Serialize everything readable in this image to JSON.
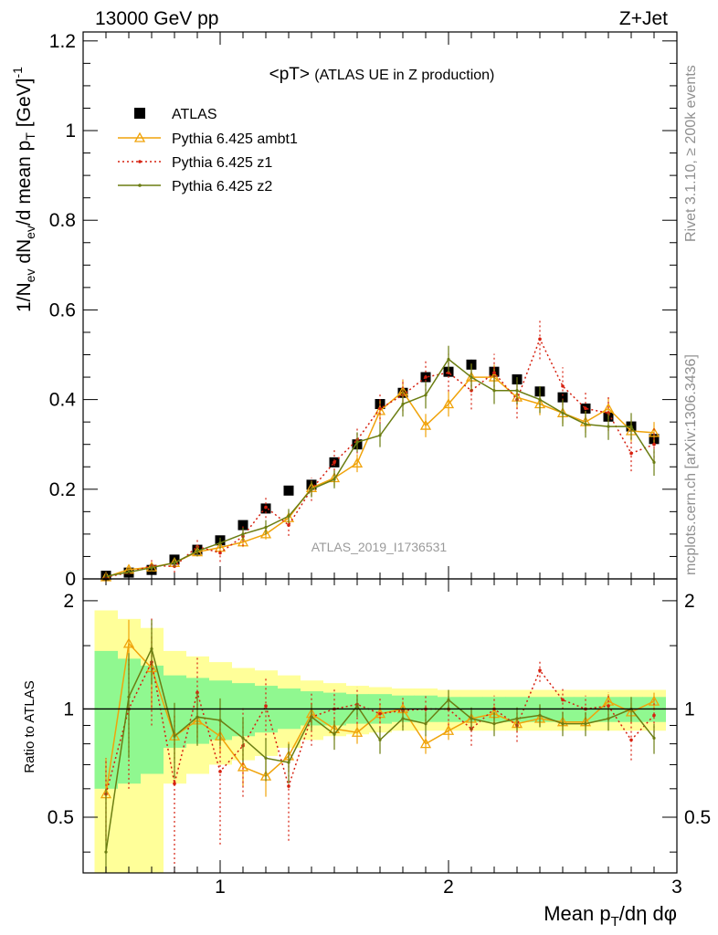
{
  "header": {
    "left": "13000 GeV pp",
    "right": "Z+Jet"
  },
  "side": {
    "rivet": "Rivet 3.1.10, ≥ 200k events",
    "mcplots": "mcplots.cern.ch [arXiv:1306.3436]"
  },
  "watermark": "ATLAS_2019_I1736531",
  "colors": {
    "data": "#000000",
    "ambt1": "#f0a30a",
    "z1": "#d6200f",
    "z2": "#6b7d12",
    "band_inner": "#90f890",
    "band_outer": "#ffff99"
  },
  "chart_data": [
    {
      "type": "line",
      "panel": "main",
      "title_main": "<pT>",
      "title_suffix": "(ATLAS UE in Z production)",
      "ylabel": "1/N_ev dN_ev/d mean p_T [GeV]^-1",
      "xlim": [
        0.4,
        3.0
      ],
      "ylim": [
        0,
        1.22
      ],
      "yticks": [
        0,
        0.2,
        0.4,
        0.6,
        0.8,
        1,
        1.2
      ],
      "ytick_labels": [
        "0",
        "0.2",
        "0.4",
        "0.6",
        "0.8",
        "1",
        "1.2"
      ],
      "x": [
        0.5,
        0.6,
        0.7,
        0.8,
        0.9,
        1.0,
        1.1,
        1.2,
        1.3,
        1.4,
        1.5,
        1.6,
        1.7,
        1.8,
        1.9,
        2.0,
        2.1,
        2.2,
        2.3,
        2.4,
        2.5,
        2.6,
        2.7,
        2.8,
        2.9
      ],
      "legend": [
        "ATLAS",
        "Pythia 6.425 ambt1",
        "Pythia 6.425 z1",
        "Pythia 6.425 z2"
      ],
      "series": [
        {
          "name": "ATLAS",
          "key": "data",
          "style": "marker",
          "values": [
            0.007,
            0.014,
            0.02,
            0.043,
            0.065,
            0.086,
            0.12,
            0.157,
            0.197,
            0.21,
            0.26,
            0.3,
            0.39,
            0.415,
            0.45,
            0.462,
            0.478,
            0.462,
            0.445,
            0.418,
            0.405,
            0.38,
            0.362,
            0.34,
            0.312
          ],
          "errors": [
            0.002,
            0.003,
            0.004,
            0.005,
            0.005,
            0.006,
            0.007,
            0.008,
            0.008,
            0.009,
            0.01,
            0.01,
            0.011,
            0.011,
            0.011,
            0.011,
            0.011,
            0.011,
            0.011,
            0.011,
            0.011,
            0.011,
            0.011,
            0.012,
            0.012
          ]
        },
        {
          "name": "Pythia 6.425 ambt1",
          "key": "ambt1",
          "style": "solid",
          "values": [
            0.004,
            0.021,
            0.026,
            0.036,
            0.06,
            0.07,
            0.082,
            0.1,
            0.136,
            0.203,
            0.225,
            0.258,
            0.375,
            0.418,
            0.342,
            0.39,
            0.45,
            0.45,
            0.405,
            0.39,
            0.37,
            0.35,
            0.38,
            0.33,
            0.326
          ],
          "errors": [
            0.003,
            0.006,
            0.007,
            0.008,
            0.009,
            0.01,
            0.011,
            0.012,
            0.014,
            0.016,
            0.018,
            0.02,
            0.024,
            0.026,
            0.026,
            0.028,
            0.03,
            0.028,
            0.026,
            0.025,
            0.024,
            0.024,
            0.024,
            0.024,
            0.024
          ]
        },
        {
          "name": "Pythia 6.425 z1",
          "key": "z1",
          "style": "dotted",
          "values": [
            0.004,
            0.014,
            0.03,
            0.028,
            0.072,
            0.058,
            0.095,
            0.16,
            0.12,
            0.2,
            0.26,
            0.31,
            0.38,
            0.41,
            0.45,
            0.46,
            0.42,
            0.46,
            0.4,
            0.535,
            0.43,
            0.38,
            0.37,
            0.28,
            0.3
          ],
          "errors": [
            0.003,
            0.006,
            0.012,
            0.014,
            0.02,
            0.02,
            0.022,
            0.024,
            0.024,
            0.026,
            0.028,
            0.03,
            0.034,
            0.036,
            0.04,
            0.042,
            0.042,
            0.042,
            0.042,
            0.045,
            0.042,
            0.04,
            0.04,
            0.04,
            0.04
          ]
        },
        {
          "name": "Pythia 6.425 z2",
          "key": "z2",
          "style": "solid",
          "values": [
            0.006,
            0.015,
            0.025,
            0.036,
            0.062,
            0.08,
            0.1,
            0.115,
            0.14,
            0.2,
            0.222,
            0.305,
            0.32,
            0.39,
            0.41,
            0.49,
            0.45,
            0.42,
            0.42,
            0.4,
            0.37,
            0.345,
            0.34,
            0.34,
            0.26
          ],
          "errors": [
            0.003,
            0.006,
            0.008,
            0.01,
            0.012,
            0.012,
            0.014,
            0.016,
            0.016,
            0.018,
            0.02,
            0.022,
            0.026,
            0.028,
            0.03,
            0.03,
            0.03,
            0.03,
            0.03,
            0.03,
            0.03,
            0.03,
            0.03,
            0.03,
            0.03
          ]
        }
      ]
    },
    {
      "type": "line",
      "panel": "ratio",
      "ylabel": "Ratio to ATLAS",
      "xlabel": "Mean p_T/dη dφ",
      "xlim": [
        0.4,
        3.0
      ],
      "ylim": [
        0.35,
        2.3
      ],
      "yscale": "log",
      "yticks": [
        0.5,
        1,
        2
      ],
      "ytick_labels": [
        "0.5",
        "1",
        "2"
      ],
      "xticks": [
        1,
        2,
        3
      ],
      "xtick_labels": [
        "1",
        "2",
        "3"
      ],
      "x": [
        0.5,
        0.6,
        0.7,
        0.8,
        0.9,
        1.0,
        1.1,
        1.2,
        1.3,
        1.4,
        1.5,
        1.6,
        1.7,
        1.8,
        1.9,
        2.0,
        2.1,
        2.2,
        2.3,
        2.4,
        2.5,
        2.6,
        2.7,
        2.8,
        2.9
      ],
      "bin_edges": [
        0.45,
        0.55,
        0.65,
        0.75,
        0.85,
        0.95,
        1.05,
        1.15,
        1.25,
        1.35,
        1.45,
        1.55,
        1.65,
        1.75,
        1.85,
        1.95,
        2.05,
        2.15,
        2.25,
        2.35,
        2.45,
        2.55,
        2.65,
        2.75,
        2.85,
        2.95
      ],
      "band_inner": [
        [
          0.6,
          1.45
        ],
        [
          0.62,
          1.38
        ],
        [
          0.66,
          1.32
        ],
        [
          0.78,
          1.24
        ],
        [
          0.8,
          1.22
        ],
        [
          0.82,
          1.2
        ],
        [
          0.84,
          1.18
        ],
        [
          0.86,
          1.16
        ],
        [
          0.88,
          1.14
        ],
        [
          0.9,
          1.12
        ],
        [
          0.9,
          1.11
        ],
        [
          0.91,
          1.1
        ],
        [
          0.91,
          1.1
        ],
        [
          0.92,
          1.09
        ],
        [
          0.92,
          1.09
        ],
        [
          0.92,
          1.08
        ],
        [
          0.92,
          1.08
        ],
        [
          0.92,
          1.08
        ],
        [
          0.92,
          1.08
        ],
        [
          0.92,
          1.08
        ],
        [
          0.92,
          1.08
        ],
        [
          0.92,
          1.08
        ],
        [
          0.92,
          1.08
        ],
        [
          0.92,
          1.08
        ],
        [
          0.92,
          1.08
        ]
      ],
      "band_outer": [
        [
          0.3,
          1.88
        ],
        [
          0.3,
          1.78
        ],
        [
          0.3,
          1.68
        ],
        [
          0.62,
          1.45
        ],
        [
          0.66,
          1.4
        ],
        [
          0.7,
          1.35
        ],
        [
          0.72,
          1.3
        ],
        [
          0.74,
          1.28
        ],
        [
          0.78,
          1.24
        ],
        [
          0.82,
          1.2
        ],
        [
          0.84,
          1.18
        ],
        [
          0.85,
          1.16
        ],
        [
          0.86,
          1.15
        ],
        [
          0.87,
          1.14
        ],
        [
          0.87,
          1.14
        ],
        [
          0.87,
          1.13
        ],
        [
          0.87,
          1.13
        ],
        [
          0.87,
          1.13
        ],
        [
          0.87,
          1.13
        ],
        [
          0.87,
          1.13
        ],
        [
          0.87,
          1.13
        ],
        [
          0.87,
          1.13
        ],
        [
          0.87,
          1.13
        ],
        [
          0.87,
          1.13
        ],
        [
          0.87,
          1.13
        ]
      ],
      "series": [
        {
          "name": "Pythia 6.425 ambt1",
          "key": "ambt1",
          "style": "solid",
          "values": [
            0.58,
            1.52,
            1.3,
            0.84,
            0.93,
            0.84,
            0.69,
            0.65,
            0.74,
            0.97,
            0.88,
            0.86,
            0.97,
            1.0,
            0.8,
            0.87,
            0.94,
            0.97,
            0.91,
            0.94,
            0.92,
            0.92,
            1.05,
            0.98,
            1.05
          ],
          "errors": [
            0.15,
            0.25,
            0.3,
            0.12,
            0.1,
            0.09,
            0.08,
            0.08,
            0.07,
            0.07,
            0.06,
            0.06,
            0.06,
            0.05,
            0.05,
            0.05,
            0.05,
            0.05,
            0.05,
            0.05,
            0.05,
            0.05,
            0.05,
            0.06,
            0.06
          ]
        },
        {
          "name": "Pythia 6.425 z1",
          "key": "z1",
          "style": "dotted",
          "values": [
            0.58,
            1.0,
            1.35,
            0.62,
            1.11,
            0.67,
            0.79,
            1.02,
            0.61,
            0.95,
            1.0,
            1.03,
            0.97,
            0.99,
            1.0,
            1.0,
            0.88,
            1.0,
            0.9,
            1.28,
            1.06,
            1.0,
            1.02,
            0.82,
            0.96
          ],
          "errors": [
            0.15,
            0.4,
            0.45,
            0.35,
            0.3,
            0.25,
            0.22,
            0.2,
            0.18,
            0.16,
            0.14,
            0.12,
            0.11,
            0.1,
            0.1,
            0.1,
            0.09,
            0.09,
            0.09,
            0.09,
            0.09,
            0.09,
            0.09,
            0.1,
            0.1
          ]
        },
        {
          "name": "Pythia 6.425 z2",
          "key": "z2",
          "style": "solid",
          "values": [
            0.4,
            1.08,
            1.47,
            0.84,
            0.95,
            0.93,
            0.83,
            0.73,
            0.71,
            0.95,
            0.85,
            1.02,
            0.82,
            0.94,
            0.91,
            1.06,
            0.94,
            0.91,
            0.94,
            0.96,
            0.91,
            0.91,
            0.94,
            1.0,
            0.83
          ],
          "errors": [
            0.2,
            0.35,
            0.3,
            0.2,
            0.16,
            0.14,
            0.12,
            0.1,
            0.09,
            0.08,
            0.08,
            0.07,
            0.07,
            0.07,
            0.07,
            0.07,
            0.07,
            0.07,
            0.07,
            0.07,
            0.07,
            0.07,
            0.07,
            0.08,
            0.08
          ]
        }
      ]
    }
  ]
}
